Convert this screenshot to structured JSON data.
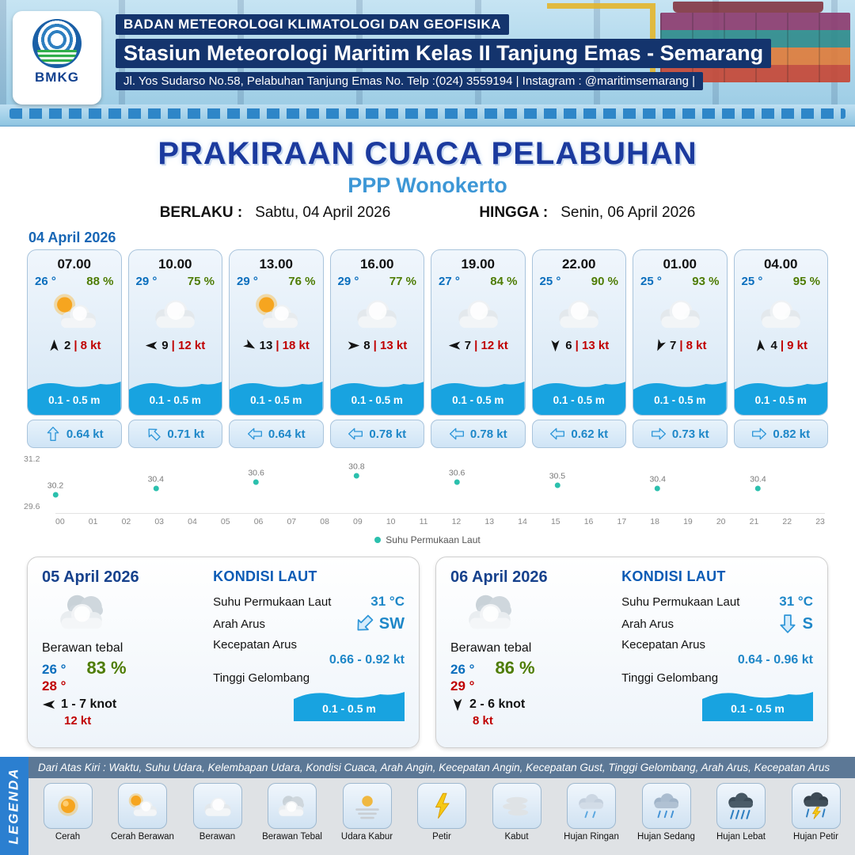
{
  "header": {
    "logo_text": "BMKG",
    "agency": "BADAN METEOROLOGI KLIMATOLOGI DAN GEOFISIKA",
    "station": "Stasiun Meteorologi Maritim Kelas II Tanjung Emas - Semarang",
    "address": "Jl. Yos Sudarso No.58, Pelabuhan Tanjung Emas No. Telp :(024) 3559194 | Instagram : @maritimsemarang |"
  },
  "title": {
    "main": "PRAKIRAAN CUACA PELABUHAN",
    "location": "PPP Wonokerto",
    "valid_from_label": "BERLAKU :",
    "valid_from": "Sabtu, 04 April 2026",
    "valid_to_label": "HINGGA :",
    "valid_to": "Senin, 06 April 2026"
  },
  "forecast_date": "04 April 2026",
  "icons": {
    "wind": "wind-arrow",
    "current": "current-arrow"
  },
  "hourly": [
    {
      "time": "07.00",
      "temp": "26 °",
      "humidity": "88 %",
      "icon": "cerah-berawan",
      "wind_deg": 0,
      "wind": "2",
      "gust": "| 8 kt",
      "wave": "0.1 - 0.5 m",
      "current_deg": 0,
      "current": "0.64 kt"
    },
    {
      "time": "10.00",
      "temp": "29 °",
      "humidity": "75 %",
      "icon": "berawan",
      "wind_deg": 270,
      "wind": "9",
      "gust": "| 12 kt",
      "wave": "0.1 - 0.5 m",
      "current_deg": 315,
      "current": "0.71 kt"
    },
    {
      "time": "13.00",
      "temp": "29 °",
      "humidity": "76 %",
      "icon": "cerah-berawan",
      "wind_deg": 120,
      "wind": "13",
      "gust": "| 18 kt",
      "wave": "0.1 - 0.5 m",
      "current_deg": 270,
      "current": "0.64 kt"
    },
    {
      "time": "16.00",
      "temp": "29 °",
      "humidity": "77 %",
      "icon": "berawan",
      "wind_deg": 90,
      "wind": "8",
      "gust": "| 13 kt",
      "wave": "0.1 - 0.5 m",
      "current_deg": 270,
      "current": "0.78 kt"
    },
    {
      "time": "19.00",
      "temp": "27 °",
      "humidity": "84 %",
      "icon": "berawan",
      "wind_deg": 270,
      "wind": "7",
      "gust": "| 12 kt",
      "wave": "0.1 - 0.5 m",
      "current_deg": 270,
      "current": "0.78 kt"
    },
    {
      "time": "22.00",
      "temp": "25 °",
      "humidity": "90 %",
      "icon": "berawan",
      "wind_deg": 180,
      "wind": "6",
      "gust": "| 13 kt",
      "wave": "0.1 - 0.5 m",
      "current_deg": 270,
      "current": "0.62 kt"
    },
    {
      "time": "01.00",
      "temp": "25 °",
      "humidity": "93 %",
      "icon": "berawan",
      "wind_deg": 205,
      "wind": "7",
      "gust": "| 8 kt",
      "wave": "0.1 - 0.5 m",
      "current_deg": 90,
      "current": "0.73 kt"
    },
    {
      "time": "04.00",
      "temp": "25 °",
      "humidity": "95 %",
      "icon": "berawan",
      "wind_deg": 355,
      "wind": "4",
      "gust": "| 9 kt",
      "wave": "0.1 - 0.5 m",
      "current_deg": 90,
      "current": "0.82 kt"
    }
  ],
  "chart_data": {
    "type": "scatter",
    "series": [
      {
        "name": "Suhu Permukaan Laut",
        "x": [
          0,
          3,
          6,
          9,
          12,
          15,
          18,
          21
        ],
        "y": [
          30.2,
          30.4,
          30.6,
          30.8,
          30.6,
          30.5,
          30.4,
          30.4
        ]
      }
    ],
    "xlim": [
      0,
      23
    ],
    "ylim": [
      29.6,
      31.2
    ],
    "y_tick_labels": [
      "31.2",
      "29.6"
    ],
    "x_ticks": [
      "00",
      "01",
      "02",
      "03",
      "04",
      "05",
      "06",
      "07",
      "08",
      "09",
      "10",
      "11",
      "12",
      "13",
      "14",
      "15",
      "16",
      "17",
      "18",
      "19",
      "20",
      "21",
      "22",
      "23"
    ],
    "legend": "Suhu Permukaan Laut",
    "dot_color": "#2bc0ad",
    "grid": false,
    "legend_position": "bottom-center"
  },
  "sea_labels": {
    "title": "KONDISI LAUT",
    "sst": "Suhu Permukaan Laut",
    "current_dir": "Arah Arus",
    "current_speed": "Kecepatan Arus",
    "wave": "Tinggi Gelombang"
  },
  "daily": [
    {
      "date": "05 April 2026",
      "icon": "berawan-tebal",
      "condition": "Berawan tebal",
      "temp_min": "26 °",
      "temp_max": "28 °",
      "humidity": "83 %",
      "wind_deg": 270,
      "wind_range": "1 - 7 knot",
      "gust": "12 kt",
      "sea": {
        "sst": "31 °C",
        "current_dir": "SW",
        "current_deg": 225,
        "current_speed": "0.66 - 0.92 kt",
        "wave": "0.1 - 0.5 m"
      }
    },
    {
      "date": "06 April 2026",
      "icon": "berawan-tebal",
      "condition": "Berawan tebal",
      "temp_min": "26 °",
      "temp_max": "29 °",
      "humidity": "86 %",
      "wind_deg": 180,
      "wind_range": "2 - 6 knot",
      "gust": "8 kt",
      "sea": {
        "sst": "31 °C",
        "current_dir": "S",
        "current_deg": 180,
        "current_speed": "0.64 - 0.96 kt",
        "wave": "0.1 - 0.5 m"
      }
    }
  ],
  "legend": {
    "title": "LEGENDA",
    "description": "Dari Atas Kiri : Waktu, Suhu Udara, Kelembapan Udara, Kondisi Cuaca, Arah Angin, Kecepatan Angin, Kecepatan Gust, Tinggi Gelombang, Arah Arus, Kecepatan Arus",
    "items": [
      {
        "label": "Cerah",
        "icon": "cerah"
      },
      {
        "label": "Cerah Berawan",
        "icon": "cerah-berawan"
      },
      {
        "label": "Berawan",
        "icon": "berawan"
      },
      {
        "label": "Berawan Tebal",
        "icon": "berawan-tebal"
      },
      {
        "label": "Udara Kabur",
        "icon": "udara-kabur"
      },
      {
        "label": "Petir",
        "icon": "petir"
      },
      {
        "label": "Kabut",
        "icon": "kabut"
      },
      {
        "label": "Hujan Ringan",
        "icon": "hujan-ringan"
      },
      {
        "label": "Hujan Sedang",
        "icon": "hujan-sedang"
      },
      {
        "label": "Hujan Lebat",
        "icon": "hujan-lebat"
      },
      {
        "label": "Hujan Petir",
        "icon": "hujan-petir"
      }
    ]
  },
  "colors": {
    "temp_blue": "#0a6ebd",
    "humidity_green": "#4e7c04",
    "gust_red": "#c00000",
    "wave_blue": "#18a3e0",
    "current_blue": "#1e87c8",
    "title_navy": "#1b3a9e",
    "subtitle_blue": "#3d97d6",
    "chart_dot_teal": "#2bc0ad"
  }
}
